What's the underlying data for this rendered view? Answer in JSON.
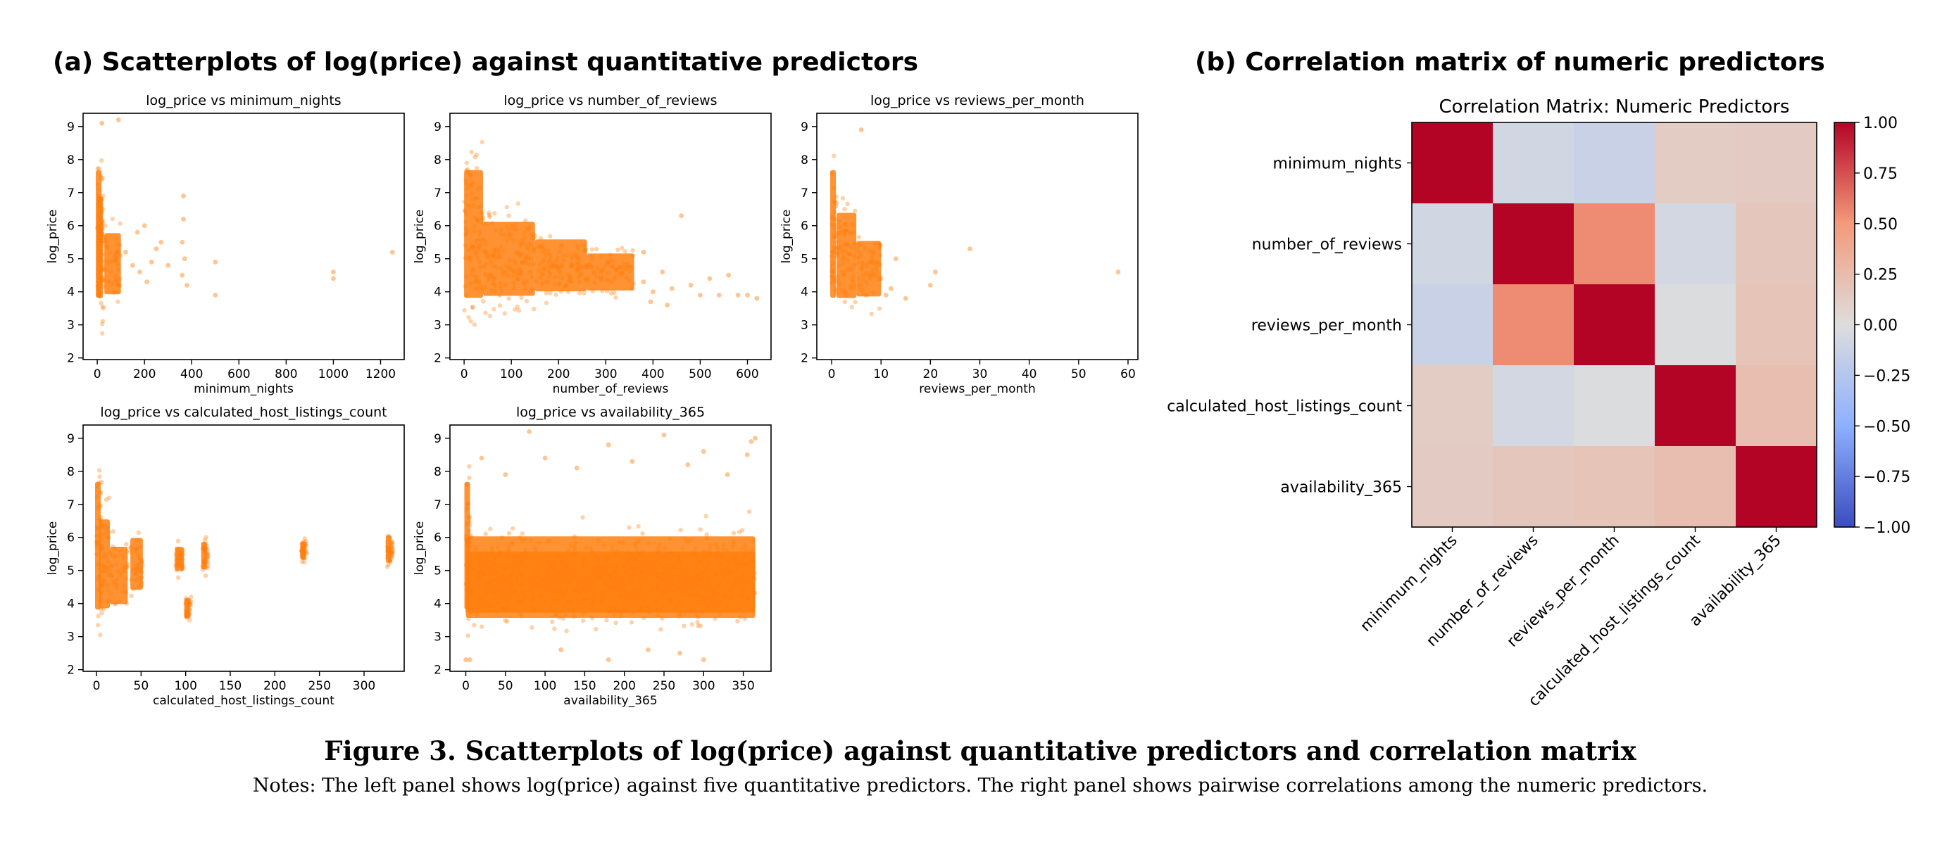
{
  "figure": {
    "panel_a_title": "(a) Scatterplots of log(price) against quantitative predictors",
    "panel_b_title": "(b) Correlation matrix of numeric predictors",
    "caption": "Figure 3. Scatterplots of log(price) against quantitative predictors and correlation matrix",
    "notes": "Notes: The left panel shows log(price) against five quantitative predictors. The right panel shows pairwise correlations among the numeric predictors."
  },
  "colors": {
    "point": "#ff7f0e",
    "cmap_low": "#3b4cc0",
    "cmap_mid": "#dddddd",
    "cmap_high": "#b40426"
  },
  "chart_data": [
    {
      "type": "scatter",
      "title": "log_price vs minimum_nights",
      "xlabel": "minimum_nights",
      "ylabel": "log_price",
      "xlim": [
        -60,
        1300
      ],
      "ylim": [
        1.95,
        9.4
      ],
      "xticks": [
        0,
        200,
        400,
        600,
        800,
        1000,
        1200
      ],
      "yticks": [
        2,
        3,
        4,
        5,
        6,
        7,
        8,
        9
      ],
      "bands": [
        {
          "x": [
            0,
            5
          ],
          "y": [
            2.3,
            9.2
          ]
        },
        {
          "x": [
            5,
            30
          ],
          "y": [
            2.6,
            8.1
          ]
        },
        {
          "x": [
            30,
            100
          ],
          "y": [
            3.2,
            6.5
          ]
        }
      ],
      "points": [
        [
          20,
          9.1
        ],
        [
          90,
          9.2
        ],
        [
          120,
          5.2
        ],
        [
          150,
          4.8
        ],
        [
          170,
          5.8
        ],
        [
          180,
          4.6
        ],
        [
          200,
          6.0
        ],
        [
          210,
          4.3
        ],
        [
          230,
          4.9
        ],
        [
          250,
          5.3
        ],
        [
          270,
          5.5
        ],
        [
          300,
          4.8
        ],
        [
          360,
          5.5
        ],
        [
          360,
          4.5
        ],
        [
          365,
          6.9
        ],
        [
          365,
          6.2
        ],
        [
          370,
          5.0
        ],
        [
          380,
          4.2
        ],
        [
          500,
          4.9
        ],
        [
          500,
          3.9
        ],
        [
          1000,
          4.4
        ],
        [
          1000,
          4.6
        ],
        [
          1250,
          5.2
        ]
      ]
    },
    {
      "type": "scatter",
      "title": "log_price vs number_of_reviews",
      "xlabel": "number_of_reviews",
      "ylabel": "log_price",
      "xlim": [
        -30,
        650
      ],
      "ylim": [
        1.95,
        9.4
      ],
      "xticks": [
        0,
        100,
        200,
        300,
        400,
        500,
        600
      ],
      "yticks": [
        2,
        3,
        4,
        5,
        6,
        7,
        8,
        9
      ],
      "bands": [
        {
          "x": [
            0,
            40
          ],
          "y": [
            2.3,
            9.2
          ]
        },
        {
          "x": [
            40,
            150
          ],
          "y": [
            3.0,
            7.0
          ]
        },
        {
          "x": [
            150,
            260
          ],
          "y": [
            3.4,
            6.2
          ]
        },
        {
          "x": [
            260,
            360
          ],
          "y": [
            3.6,
            5.6
          ]
        }
      ],
      "points": [
        [
          380,
          4.3
        ],
        [
          400,
          4.0
        ],
        [
          420,
          4.6
        ],
        [
          440,
          4.1
        ],
        [
          460,
          6.3
        ],
        [
          480,
          4.2
        ],
        [
          500,
          3.9
        ],
        [
          520,
          4.4
        ],
        [
          540,
          3.9
        ],
        [
          560,
          4.5
        ],
        [
          580,
          3.9
        ],
        [
          600,
          3.9
        ],
        [
          620,
          3.8
        ],
        [
          380,
          5.2
        ],
        [
          395,
          3.7
        ],
        [
          430,
          3.6
        ]
      ]
    },
    {
      "type": "scatter",
      "title": "log_price vs reviews_per_month",
      "xlabel": "reviews_per_month",
      "ylabel": "log_price",
      "xlim": [
        -3,
        62
      ],
      "ylim": [
        1.95,
        9.4
      ],
      "xticks": [
        0,
        10,
        20,
        30,
        40,
        50,
        60
      ],
      "yticks": [
        2,
        3,
        4,
        5,
        6,
        7,
        8,
        9
      ],
      "bands": [
        {
          "x": [
            0,
            1
          ],
          "y": [
            2.3,
            9.2
          ]
        },
        {
          "x": [
            1,
            5
          ],
          "y": [
            2.8,
            7.4
          ]
        },
        {
          "x": [
            5,
            10
          ],
          "y": [
            3.2,
            6.2
          ]
        }
      ],
      "points": [
        [
          10,
          4.4
        ],
        [
          11,
          3.9
        ],
        [
          12,
          4.1
        ],
        [
          13,
          5.0
        ],
        [
          15,
          3.8
        ],
        [
          20,
          4.2
        ],
        [
          21,
          4.6
        ],
        [
          28,
          5.3
        ],
        [
          58,
          4.6
        ],
        [
          6,
          8.9
        ]
      ]
    },
    {
      "type": "scatter",
      "title": "log_price vs calculated_host_listings_count",
      "xlabel": "calculated_host_listings_count",
      "ylabel": "log_price",
      "xlim": [
        -15,
        345
      ],
      "ylim": [
        1.95,
        9.4
      ],
      "xticks": [
        0,
        50,
        100,
        150,
        200,
        250,
        300
      ],
      "yticks": [
        2,
        3,
        4,
        5,
        6,
        7,
        8,
        9
      ],
      "bands": [
        {
          "x": [
            0,
            3
          ],
          "y": [
            2.3,
            9.2
          ]
        },
        {
          "x": [
            3,
            15
          ],
          "y": [
            2.8,
            7.6
          ]
        },
        {
          "x": [
            15,
            35
          ],
          "y": [
            3.3,
            6.4
          ]
        },
        {
          "x": [
            38,
            52
          ],
          "y": [
            3.8,
            6.6
          ]
        },
        {
          "x": [
            88,
            98
          ],
          "y": [
            4.7,
            6.0
          ]
        },
        {
          "x": [
            100,
            104
          ],
          "y": [
            3.3,
            4.4
          ]
        },
        {
          "x": [
            119,
            123
          ],
          "y": [
            4.7,
            6.2
          ]
        },
        {
          "x": [
            230,
            234
          ],
          "y": [
            5.1,
            6.1
          ]
        },
        {
          "x": [
            326,
            330
          ],
          "y": [
            4.9,
            6.4
          ]
        }
      ],
      "points": []
    },
    {
      "type": "scatter",
      "title": "log_price vs availability_365",
      "xlabel": "availability_365",
      "ylabel": "log_price",
      "xlim": [
        -20,
        385
      ],
      "ylim": [
        1.95,
        9.4
      ],
      "xticks": [
        0,
        50,
        100,
        150,
        200,
        250,
        300,
        350
      ],
      "yticks": [
        2,
        3,
        4,
        5,
        6,
        7,
        8,
        9
      ],
      "bands": [
        {
          "x": [
            0,
            5
          ],
          "y": [
            2.3,
            9.2
          ]
        },
        {
          "x": [
            0,
            365
          ],
          "y": [
            3.0,
            6.3
          ]
        },
        {
          "x": [
            0,
            365
          ],
          "y": [
            2.6,
            7.0
          ]
        }
      ],
      "points": [
        [
          80,
          9.2
        ],
        [
          100,
          8.4
        ],
        [
          140,
          8.1
        ],
        [
          180,
          8.8
        ],
        [
          210,
          8.3
        ],
        [
          250,
          9.1
        ],
        [
          280,
          8.2
        ],
        [
          300,
          8.6
        ],
        [
          330,
          7.9
        ],
        [
          355,
          8.5
        ],
        [
          360,
          8.9
        ],
        [
          365,
          9.0
        ],
        [
          20,
          8.4
        ],
        [
          50,
          7.9
        ],
        [
          120,
          2.6
        ],
        [
          180,
          2.3
        ],
        [
          230,
          2.6
        ],
        [
          270,
          2.5
        ],
        [
          300,
          2.3
        ],
        [
          0,
          2.3
        ],
        [
          5,
          2.3
        ]
      ]
    },
    {
      "type": "heatmap",
      "title": "Correlation Matrix: Numeric Predictors",
      "labels": [
        "minimum_nights",
        "number_of_reviews",
        "reviews_per_month",
        "calculated_host_listings_count",
        "availability_365"
      ],
      "values": [
        [
          1.0,
          -0.08,
          -0.13,
          0.13,
          0.14
        ],
        [
          -0.08,
          1.0,
          0.55,
          -0.07,
          0.17
        ],
        [
          -0.13,
          0.55,
          1.0,
          -0.01,
          0.19
        ],
        [
          0.13,
          -0.07,
          -0.01,
          1.0,
          0.23
        ],
        [
          0.14,
          0.17,
          0.19,
          0.23,
          1.0
        ]
      ],
      "vmin": -1.0,
      "vmax": 1.0,
      "colorbar_ticks": [
        "1.00",
        "0.75",
        "0.50",
        "0.25",
        "0.00",
        "−0.25",
        "−0.50",
        "−0.75",
        "−1.00"
      ]
    }
  ]
}
